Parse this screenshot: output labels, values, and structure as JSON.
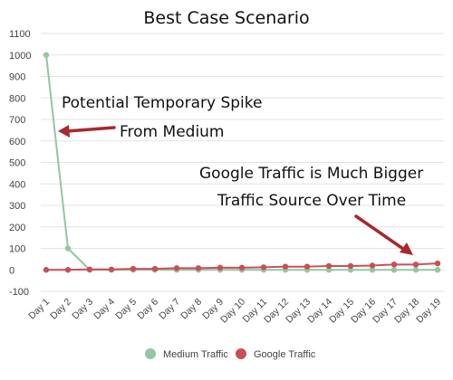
{
  "chart_data": {
    "type": "line",
    "title": "Best Case Scenario",
    "xlabel": "",
    "ylabel": "",
    "categories": [
      "Day 1",
      "Day 2",
      "Day 3",
      "Day 4",
      "Day 5",
      "Day 6",
      "Day 7",
      "Day 8",
      "Day 9",
      "Day 10",
      "Day 11",
      "Day 12",
      "Day 13",
      "Day 14",
      "Day 15",
      "Day 16",
      "Day 17",
      "Day 18",
      "Day 19"
    ],
    "yticks": [
      "1100",
      "1000",
      "900",
      "800",
      "700",
      "600",
      "500",
      "400",
      "300",
      "200",
      "100",
      "0",
      "-100"
    ],
    "ylim": [
      -100,
      1100
    ],
    "grid": true,
    "legend_position": "bottom",
    "series": [
      {
        "name": "Medium Traffic",
        "color": "#93c6a1",
        "values": [
          1000,
          100,
          0,
          0,
          0,
          0,
          0,
          0,
          0,
          0,
          0,
          0,
          0,
          0,
          0,
          0,
          0,
          0,
          0
        ]
      },
      {
        "name": "Google Traffic",
        "color": "#c94f55",
        "values": [
          0,
          0,
          2,
          2,
          5,
          5,
          8,
          8,
          10,
          10,
          12,
          15,
          15,
          18,
          18,
          20,
          25,
          25,
          30
        ]
      }
    ],
    "annotations": [
      {
        "lines": [
          "Potential Temporary Spike",
          "From Medium"
        ],
        "arrow_color": "#a8282e"
      },
      {
        "lines": [
          "Google Traffic is Much Bigger",
          "Traffic Source Over Time"
        ],
        "arrow_color": "#a8282e"
      }
    ]
  }
}
